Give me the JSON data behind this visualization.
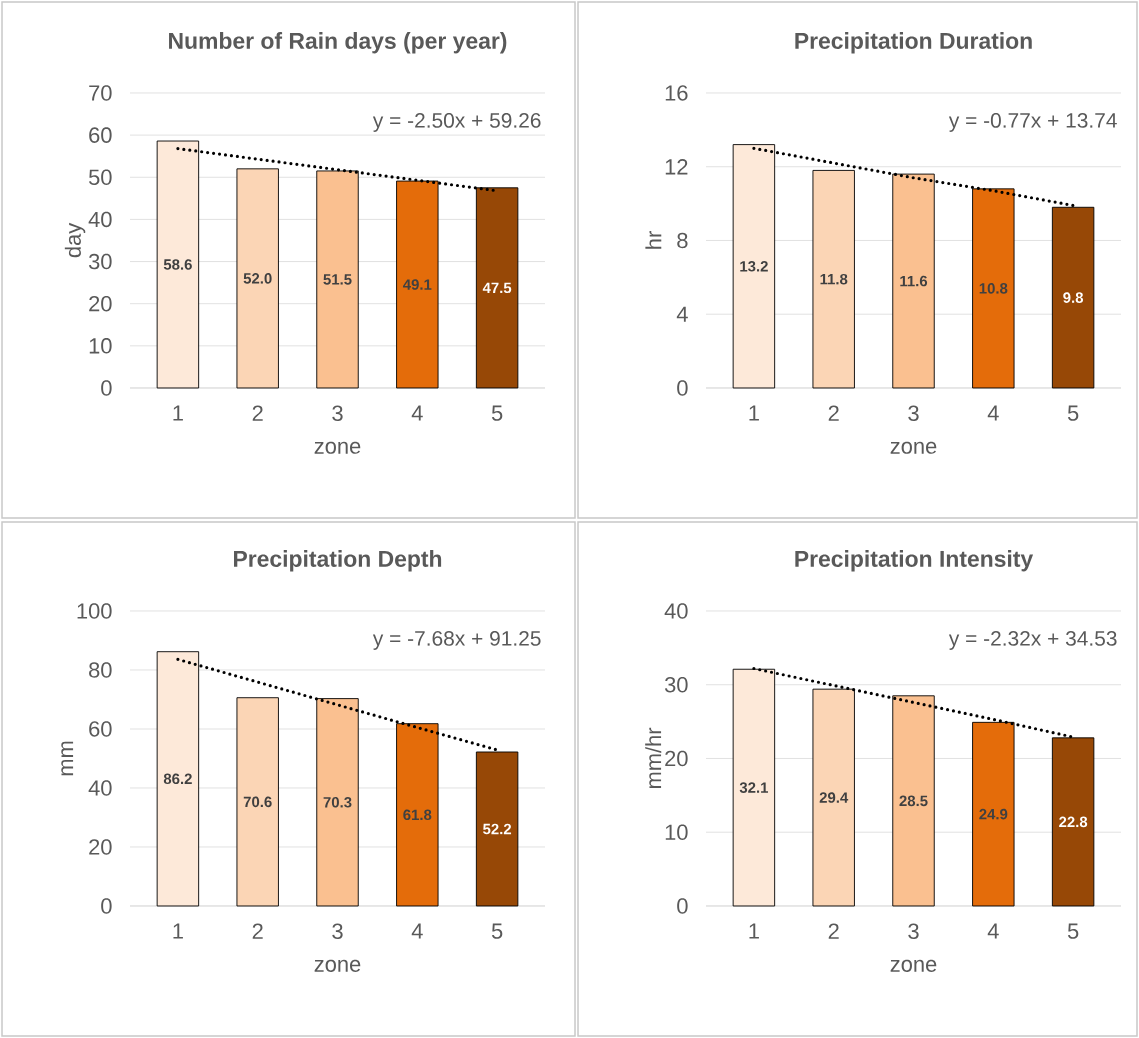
{
  "chart_data": [
    {
      "type": "bar",
      "title": "Number of Rain days (per year)",
      "xlabel": "zone",
      "ylabel": "day",
      "x": [
        1,
        2,
        3,
        4,
        5
      ],
      "xlim": [
        0.4,
        5.6
      ],
      "xticks": [
        1,
        2,
        3,
        4,
        5
      ],
      "ylim": [
        0,
        70
      ],
      "yticks": [
        0,
        10,
        20,
        30,
        40,
        50,
        60,
        70
      ],
      "grid": "y",
      "annotations": [
        "y = -2.50x + 59.26"
      ],
      "series": [
        {
          "colors": [
            "#fde9d9",
            "#fbd5b5",
            "#fac090",
            "#e46c0a",
            "#974806"
          ],
          "values": [
            58.6,
            52.0,
            51.5,
            49.1,
            47.5
          ],
          "value_labels": [
            "58.6",
            "52.0",
            "51.5",
            "49.1",
            "47.5"
          ]
        },
        {
          "type": "line",
          "values": [
            56.8,
            54.3,
            51.8,
            49.3,
            46.8
          ],
          "color": "#000000",
          "line_style": "dotted"
        }
      ]
    },
    {
      "type": "bar",
      "title": "Precipitation Duration",
      "xlabel": "zone",
      "ylabel": "hr",
      "x": [
        1,
        2,
        3,
        4,
        5
      ],
      "xlim": [
        0.4,
        5.6
      ],
      "xticks": [
        1,
        2,
        3,
        4,
        5
      ],
      "ylim": [
        0,
        16
      ],
      "yticks": [
        0,
        4,
        8,
        12,
        16
      ],
      "grid": "y",
      "annotations": [
        "y = -0.77x + 13.74"
      ],
      "series": [
        {
          "colors": [
            "#fde9d9",
            "#fbd5b5",
            "#fac090",
            "#e46c0a",
            "#974806"
          ],
          "values": [
            13.2,
            11.8,
            11.6,
            10.8,
            9.8
          ],
          "value_labels": [
            "13.2",
            "11.8",
            "11.6",
            "10.8",
            "9.8"
          ]
        },
        {
          "type": "line",
          "values": [
            13.0,
            12.2,
            11.4,
            10.7,
            9.9
          ],
          "color": "#000000",
          "line_style": "dotted"
        }
      ]
    },
    {
      "type": "bar",
      "title": "Precipitation Depth",
      "xlabel": "zone",
      "ylabel": "mm",
      "x": [
        1,
        2,
        3,
        4,
        5
      ],
      "xlim": [
        0.4,
        5.6
      ],
      "xticks": [
        1,
        2,
        3,
        4,
        5
      ],
      "ylim": [
        0,
        100
      ],
      "yticks": [
        0,
        20,
        40,
        60,
        80,
        100
      ],
      "grid": "y",
      "annotations": [
        "y = -7.68x + 91.25"
      ],
      "series": [
        {
          "colors": [
            "#fde9d9",
            "#fbd5b5",
            "#fac090",
            "#e46c0a",
            "#974806"
          ],
          "values": [
            86.2,
            70.6,
            70.3,
            61.8,
            52.2
          ],
          "value_labels": [
            "86.2",
            "70.6",
            "70.3",
            "61.8",
            "52.2"
          ]
        },
        {
          "type": "line",
          "values": [
            83.6,
            75.9,
            68.2,
            60.5,
            52.9
          ],
          "color": "#000000",
          "line_style": "dotted"
        }
      ]
    },
    {
      "type": "bar",
      "title": "Precipitation Intensity",
      "xlabel": "zone",
      "ylabel": "mm/hr",
      "x": [
        1,
        2,
        3,
        4,
        5
      ],
      "xlim": [
        0.4,
        5.6
      ],
      "xticks": [
        1,
        2,
        3,
        4,
        5
      ],
      "ylim": [
        0,
        40
      ],
      "yticks": [
        0,
        10,
        20,
        30,
        40
      ],
      "grid": "y",
      "annotations": [
        "y = -2.32x + 34.53"
      ],
      "series": [
        {
          "colors": [
            "#fde9d9",
            "#fbd5b5",
            "#fac090",
            "#e46c0a",
            "#974806"
          ],
          "values": [
            32.1,
            29.4,
            28.5,
            24.9,
            22.8
          ],
          "value_labels": [
            "32.1",
            "29.4",
            "28.5",
            "24.9",
            "22.8"
          ]
        },
        {
          "type": "line",
          "values": [
            32.2,
            29.9,
            27.6,
            25.3,
            22.9
          ],
          "color": "#000000",
          "line_style": "dotted"
        }
      ]
    }
  ]
}
